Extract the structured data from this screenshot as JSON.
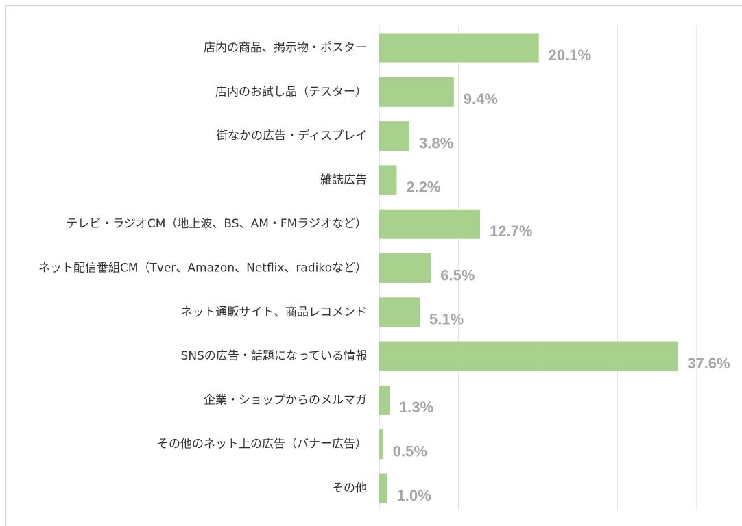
{
  "chart_data": {
    "type": "barh",
    "categories": [
      "店内の商品、掲示物・ポスター",
      "店内のお試し品（テスター）",
      "街なかの広告・ディスプレイ",
      "雑誌広告",
      "テレビ・ラジオCM（地上波、BS、AM・FMラジオなど）",
      "ネット配信番組CM（Tver、Amazon、Netflix、radikoなど）",
      "ネット通販サイト、商品レコメンド",
      "SNSの広告・話題になっている情報",
      "企業・ショップからのメルマガ",
      "その他のネット上の広告（バナー広告）",
      "その他"
    ],
    "values": [
      20.1,
      9.4,
      3.8,
      2.2,
      12.7,
      6.5,
      5.1,
      37.6,
      1.3,
      0.5,
      1.0
    ],
    "value_labels": [
      "20.1%",
      "9.4%",
      "3.8%",
      "2.2%",
      "12.7%",
      "6.5%",
      "5.1%",
      "37.6%",
      "1.3%",
      "0.5%",
      "1.0%"
    ],
    "color": "#a9d18e",
    "xlim": [
      0,
      40
    ],
    "xticks": [
      0,
      10,
      20,
      30,
      40
    ],
    "grid": true
  }
}
